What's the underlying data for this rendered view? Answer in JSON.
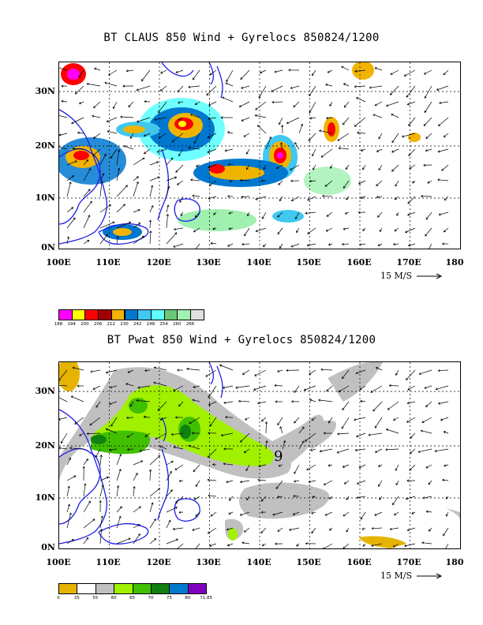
{
  "top": {
    "title": "BT CLAUS 850 Wind + Gyrelocs 850824/1200",
    "lat_labels": [
      "30N",
      "20N",
      "10N",
      "0N"
    ],
    "lon_labels": [
      "100E",
      "110E",
      "120E",
      "130E",
      "140E",
      "150E",
      "160E",
      "170E",
      "180"
    ],
    "scale_label": "15 M/S",
    "colorbar_values": [
      "188",
      "194",
      "200",
      "206",
      "212",
      "230",
      "242",
      "248",
      "254",
      "260",
      "266"
    ],
    "colorbar_colors": [
      "#ff00ff",
      "#ffff00",
      "#ff0000",
      "#a00000",
      "#f0b400",
      "#0078d0",
      "#40c8f0",
      "#60ffff",
      "#6cc878",
      "#a0f0b0",
      "#e0e0e0"
    ]
  },
  "bottom": {
    "title": "BT Pwat 850 Wind + Gyrelocs 850824/1200",
    "lat_labels": [
      "30N",
      "20N",
      "10N",
      "0N"
    ],
    "lon_labels": [
      "100E",
      "110E",
      "120E",
      "130E",
      "140E",
      "150E",
      "160E",
      "170E",
      "180"
    ],
    "scale_label": "15 M/S",
    "storm_symbol": "9",
    "colorbar_values": [
      "0",
      "35",
      "55",
      "60",
      "65",
      "70",
      "75",
      "80",
      "71.85"
    ],
    "colorbar_colors": [
      "#e6b400",
      "#ffffff",
      "#c0c0c0",
      "#a0f000",
      "#40c000",
      "#108010",
      "#0078d0",
      "#8000c0"
    ]
  }
}
